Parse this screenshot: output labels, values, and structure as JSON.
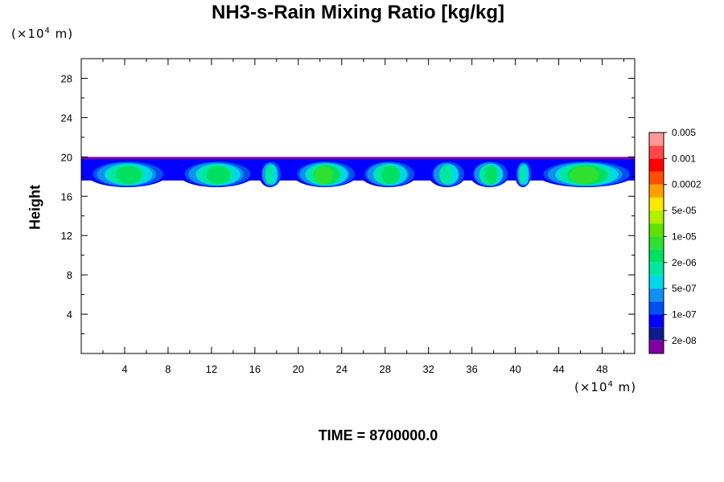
{
  "chart_data": {
    "type": "heatmap",
    "title": "NH3-s-Rain Mixing Ratio [kg/kg]",
    "xlabel": "",
    "ylabel": "Height",
    "x_unit_prefix": "(×10",
    "x_unit_exp": "4",
    "x_unit_suffix": " m)",
    "y_unit_prefix": "(×10",
    "y_unit_exp": "4",
    "y_unit_suffix": " m)",
    "xlim": [
      0,
      51
    ],
    "ylim": [
      0,
      30
    ],
    "x_ticks": [
      4,
      8,
      12,
      16,
      20,
      24,
      28,
      32,
      36,
      40,
      44,
      48
    ],
    "y_ticks": [
      4,
      8,
      12,
      16,
      20,
      24,
      28
    ],
    "layer": {
      "bottom": 17.0,
      "top": 20.0,
      "core_bottom": 17.5,
      "core_top": 19.0,
      "peak_height": 18.2
    },
    "cells": [
      {
        "x0": 0.5,
        "x1": 8.0,
        "peak_level": 7
      },
      {
        "x0": 9.0,
        "x1": 16.0,
        "peak_level": 7
      },
      {
        "x0": 16.4,
        "x1": 18.5,
        "peak_level": 6
      },
      {
        "x0": 19.5,
        "x1": 25.5,
        "peak_level": 8
      },
      {
        "x0": 25.7,
        "x1": 31.0,
        "peak_level": 7
      },
      {
        "x0": 32.0,
        "x1": 35.5,
        "peak_level": 6
      },
      {
        "x0": 35.8,
        "x1": 39.5,
        "peak_level": 7
      },
      {
        "x0": 40.0,
        "x1": 41.5,
        "peak_level": 6
      },
      {
        "x0": 42.0,
        "x1": 51.0,
        "peak_level": 8
      }
    ],
    "colorbar": {
      "colors": [
        "#8000a0",
        "#101a8c",
        "#0000ff",
        "#0050f0",
        "#1090f0",
        "#00d8e8",
        "#00e8a0",
        "#00e060",
        "#30e030",
        "#60e000",
        "#b0f000",
        "#ffe800",
        "#ffa000",
        "#ff5000",
        "#ff0000",
        "#ff4848",
        "#ff9898"
      ],
      "labels": [
        "2e-08",
        "1e-07",
        "5e-07",
        "2e-06",
        "1e-05",
        "5e-05",
        "0.0002",
        "0.001",
        "0.005"
      ]
    }
  },
  "time_label": "TIME = 8700000.0"
}
